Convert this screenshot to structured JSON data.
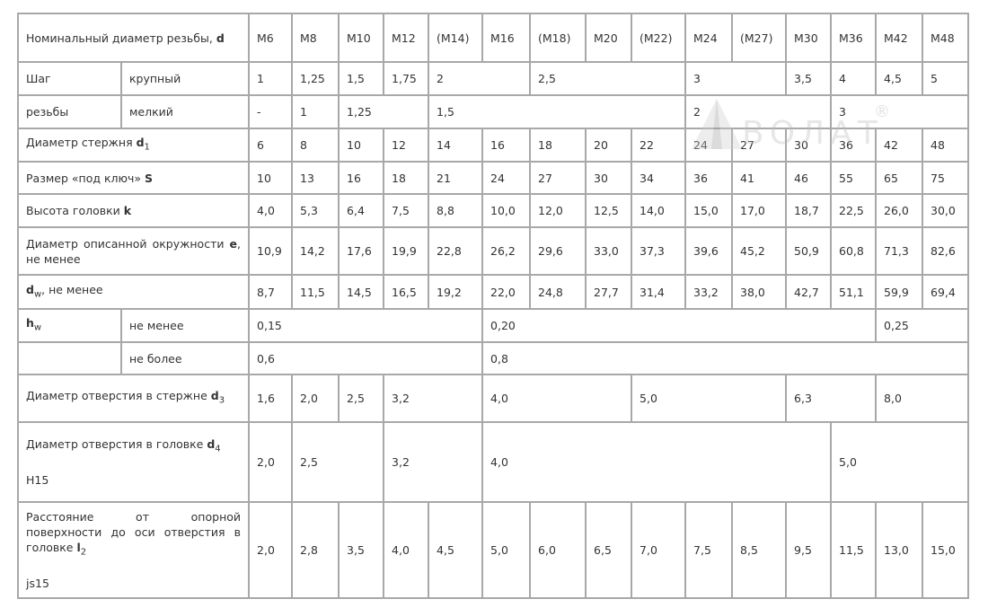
{
  "logo": {
    "text": "ВОЛАТ",
    "mark": "®"
  },
  "header": {
    "label": "Номинальный диаметр резьбы, ",
    "sym": "d",
    "sizes": [
      "M6",
      "M8",
      "M10",
      "M12",
      "(M14)",
      "M16",
      "(M18)",
      "M20",
      "(M22)",
      "M24",
      "(M27)",
      "M30",
      "M36",
      "M42",
      "M48"
    ]
  },
  "rows": [
    {
      "labels": [
        {
          "text": "Шаг"
        },
        {
          "text": "крупный"
        }
      ],
      "h": 37,
      "cells": [
        [
          "1",
          1
        ],
        [
          "1,25",
          1
        ],
        [
          "1,5",
          1
        ],
        [
          "1,75",
          1
        ],
        [
          "2",
          2
        ],
        [
          "2,5",
          3
        ],
        [
          "3",
          2
        ],
        [
          "3,5",
          1
        ],
        [
          "4",
          1
        ],
        [
          "4,5",
          1
        ],
        [
          "5",
          1
        ]
      ]
    },
    {
      "labels": [
        {
          "text": "резьбы"
        },
        {
          "text": "мелкий"
        }
      ],
      "h": 37,
      "cells": [
        [
          "-",
          1
        ],
        [
          "1",
          1
        ],
        [
          "1,25",
          2
        ],
        [
          "1,5",
          5
        ],
        [
          "2",
          3
        ],
        [
          "3",
          3
        ]
      ]
    },
    {
      "labels": [
        {
          "text": "Диаметр стержня ",
          "sym": "d",
          "sub": "1"
        }
      ],
      "h": 37,
      "cells": [
        [
          "6",
          1
        ],
        [
          "8",
          1
        ],
        [
          "10",
          1
        ],
        [
          "12",
          1
        ],
        [
          "14",
          1
        ],
        [
          "16",
          1
        ],
        [
          "18",
          1
        ],
        [
          "20",
          1
        ],
        [
          "22",
          1
        ],
        [
          "24",
          1
        ],
        [
          "27",
          1
        ],
        [
          "30",
          1
        ],
        [
          "36",
          1
        ],
        [
          "42",
          1
        ],
        [
          "48",
          1
        ]
      ]
    },
    {
      "labels": [
        {
          "text": "Размер «под ключ» ",
          "sym": "S"
        }
      ],
      "h": 36,
      "cells": [
        [
          "10",
          1
        ],
        [
          "13",
          1
        ],
        [
          "16",
          1
        ],
        [
          "18",
          1
        ],
        [
          "21",
          1
        ],
        [
          "24",
          1
        ],
        [
          "27",
          1
        ],
        [
          "30",
          1
        ],
        [
          "34",
          1
        ],
        [
          "36",
          1
        ],
        [
          "41",
          1
        ],
        [
          "46",
          1
        ],
        [
          "55",
          1
        ],
        [
          "65",
          1
        ],
        [
          "75",
          1
        ]
      ]
    },
    {
      "labels": [
        {
          "text": "Высота головки ",
          "sym": "k"
        }
      ],
      "h": 37,
      "cells": [
        [
          "4,0",
          1
        ],
        [
          "5,3",
          1
        ],
        [
          "6,4",
          1
        ],
        [
          "7,5",
          1
        ],
        [
          "8,8",
          1
        ],
        [
          "10,0",
          1
        ],
        [
          "12,0",
          1
        ],
        [
          "12,5",
          1
        ],
        [
          "14,0",
          1
        ],
        [
          "15,0",
          1
        ],
        [
          "17,0",
          1
        ],
        [
          "18,7",
          1
        ],
        [
          "22,5",
          1
        ],
        [
          "26,0",
          1
        ],
        [
          "30,0",
          1
        ]
      ]
    },
    {
      "labels": [
        {
          "text": "Диаметр описанной окружности ",
          "sym": "e",
          "after": ", не менее",
          "justify": true
        }
      ],
      "h": 53,
      "cells": [
        [
          "10,9",
          1
        ],
        [
          "14,2",
          1
        ],
        [
          "17,6",
          1
        ],
        [
          "19,9",
          1
        ],
        [
          "22,8",
          1
        ],
        [
          "26,2",
          1
        ],
        [
          "29,6",
          1
        ],
        [
          "33,0",
          1
        ],
        [
          "37,3",
          1
        ],
        [
          "39,6",
          1
        ],
        [
          "45,2",
          1
        ],
        [
          "50,9",
          1
        ],
        [
          "60,8",
          1
        ],
        [
          "71,3",
          1
        ],
        [
          "82,6",
          1
        ]
      ]
    },
    {
      "labels": [
        {
          "text": "",
          "sym": "d",
          "sub": "w",
          "after": ", не менее"
        }
      ],
      "h": 38,
      "cells": [
        [
          "8,7",
          1
        ],
        [
          "11,5",
          1
        ],
        [
          "14,5",
          1
        ],
        [
          "16,5",
          1
        ],
        [
          "19,2",
          1
        ],
        [
          "22,0",
          1
        ],
        [
          "24,8",
          1
        ],
        [
          "27,7",
          1
        ],
        [
          "31,4",
          1
        ],
        [
          "33,2",
          1
        ],
        [
          "38,0",
          1
        ],
        [
          "42,7",
          1
        ],
        [
          "51,1",
          1
        ],
        [
          "59,9",
          1
        ],
        [
          "69,4",
          1
        ]
      ]
    },
    {
      "labels": [
        {
          "text": "",
          "sym": "h",
          "sub": "w"
        },
        {
          "text": "не менее"
        }
      ],
      "h": 37,
      "cells": [
        [
          "0,15",
          5
        ],
        [
          "0,20",
          8
        ],
        [
          "0,25",
          2
        ]
      ]
    },
    {
      "labels": [
        {
          "text": ""
        },
        {
          "text": "не более"
        }
      ],
      "h": 36,
      "cells": [
        [
          "0,6",
          5
        ],
        [
          "0,8",
          10
        ]
      ]
    },
    {
      "labels": [
        {
          "text": "Диаметр отверстия в стержне ",
          "sym": "d",
          "sub": "3"
        }
      ],
      "h": 53,
      "cells": [
        [
          "1,6",
          1
        ],
        [
          "2,0",
          1
        ],
        [
          "2,5",
          1
        ],
        [
          "3,2",
          2
        ],
        [
          "4,0",
          3
        ],
        [
          "5,0",
          3
        ],
        [
          "6,3",
          2
        ],
        [
          "8,0",
          2
        ]
      ]
    },
    {
      "labels": [
        {
          "text": "Диаметр отверстия в головке ",
          "sym": "d",
          "sub": "4",
          "extra": "H15"
        }
      ],
      "h": 89,
      "cells": [
        [
          "2,0",
          1
        ],
        [
          "2,5",
          2
        ],
        [
          "3,2",
          2
        ],
        [
          "4,0",
          7
        ],
        [
          "5,0",
          3
        ]
      ]
    },
    {
      "labels": [
        {
          "text": "Расстояние от опорной поверхности до оси отверстия в головке ",
          "sym": "l",
          "sub": "2",
          "extra": "js15",
          "justify": true
        }
      ],
      "h": 107,
      "cells": [
        [
          "2,0",
          1
        ],
        [
          "2,8",
          1
        ],
        [
          "3,5",
          1
        ],
        [
          "4,0",
          1
        ],
        [
          "4,5",
          1
        ],
        [
          "5,0",
          1
        ],
        [
          "6,0",
          1
        ],
        [
          "6,5",
          1
        ],
        [
          "7,0",
          1
        ],
        [
          "7,5",
          1
        ],
        [
          "8,5",
          1
        ],
        [
          "9,5",
          1
        ],
        [
          "11,5",
          1
        ],
        [
          "13,0",
          1
        ],
        [
          "15,0",
          1
        ]
      ]
    }
  ]
}
